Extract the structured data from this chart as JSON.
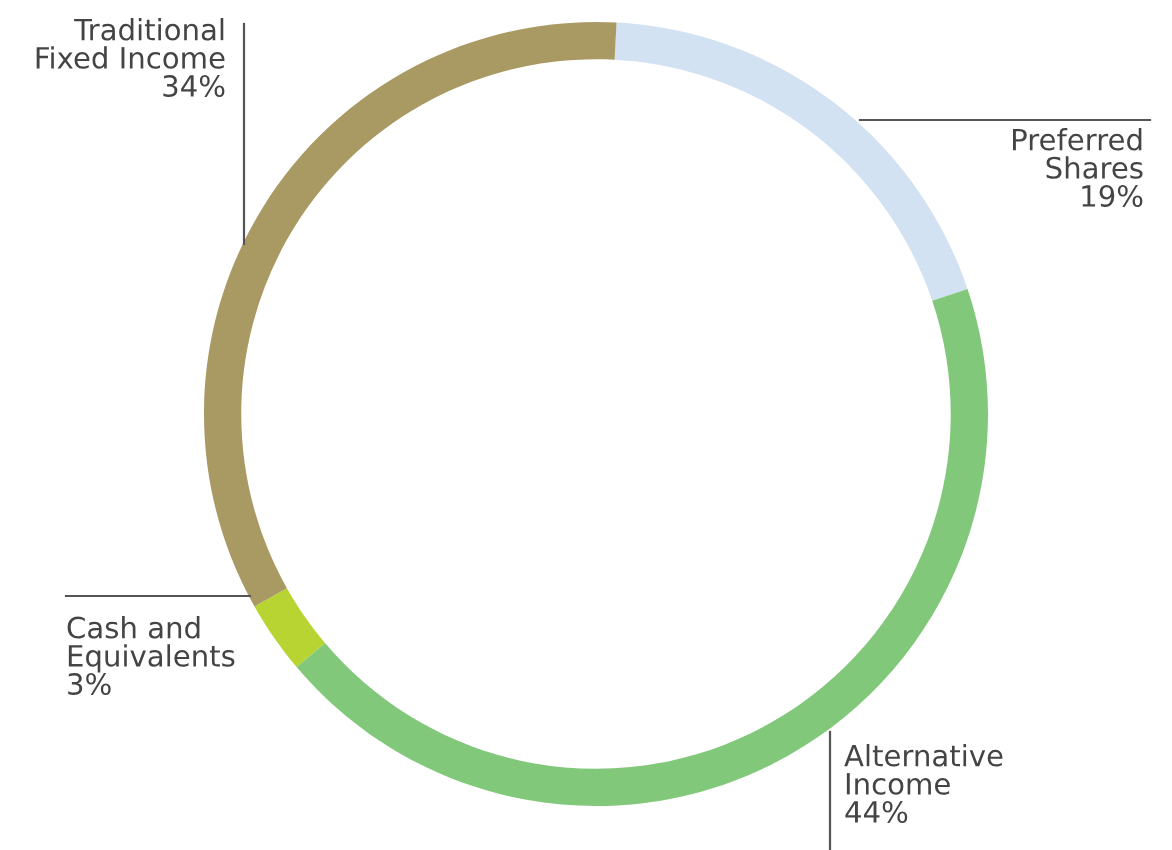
{
  "chart_data": {
    "type": "donut",
    "categories": [
      "Preferred Shares",
      "Alternative Income",
      "Cash and Equivalents",
      "Traditional Fixed Income"
    ],
    "values": [
      19,
      44,
      3,
      34
    ],
    "value_labels": [
      "19%",
      "44%",
      "3%",
      "34%"
    ],
    "colors": [
      "#d2e2f3",
      "#82c87b",
      "#b8d433",
      "#a99963"
    ]
  }
}
